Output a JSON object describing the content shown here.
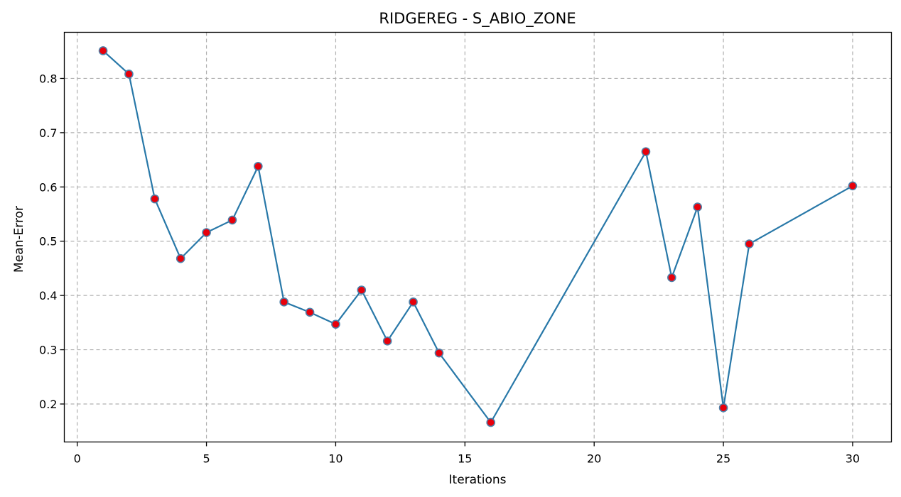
{
  "chart_data": {
    "type": "line",
    "title": "RIDGEREG - S_ABIO_ZONE",
    "xlabel": "Iterations",
    "ylabel": "Mean-Error",
    "xlim": [
      -0.5,
      31.5
    ],
    "ylim": [
      0.13,
      0.885
    ],
    "xticks": [
      0,
      5,
      10,
      15,
      20,
      25,
      30
    ],
    "yticks": [
      0.2,
      0.3,
      0.4,
      0.5,
      0.6,
      0.7,
      0.8
    ],
    "grid": true,
    "line_color": "#2878a8",
    "marker_fill": "#e8000b",
    "marker_edge": "#4d7fa8",
    "series": [
      {
        "x": [
          1,
          2,
          3,
          4,
          5,
          6,
          7,
          8,
          9,
          10,
          11,
          12,
          13,
          14,
          16,
          22,
          23,
          24,
          25,
          26,
          30
        ],
        "y": [
          0.851,
          0.808,
          0.578,
          0.468,
          0.516,
          0.539,
          0.638,
          0.388,
          0.369,
          0.347,
          0.41,
          0.316,
          0.388,
          0.294,
          0.166,
          0.665,
          0.433,
          0.563,
          0.193,
          0.495,
          0.602
        ]
      }
    ]
  }
}
